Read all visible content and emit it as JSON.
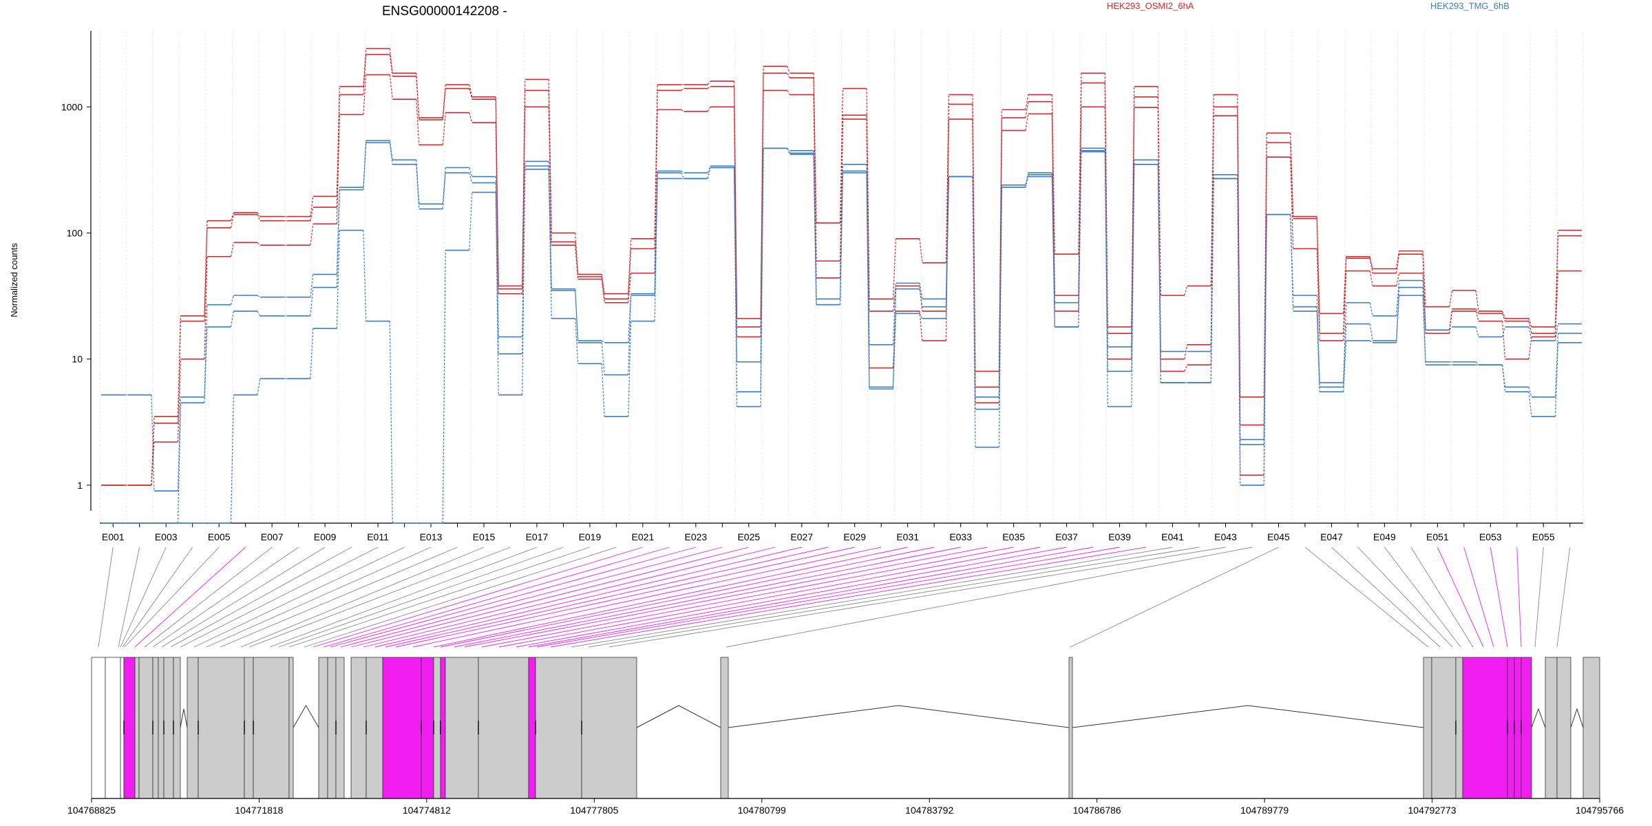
{
  "title": "ENSG00000142208 -",
  "legend": [
    {
      "label": "HEK293_OSMI2_6hA",
      "color": "#d62728"
    },
    {
      "label": "HEK293_TMG_6hB",
      "color": "#3a7fc1"
    }
  ],
  "ylabel": "Normalized counts",
  "colors": {
    "condition_a": "#d62728",
    "condition_b": "#3a7fc1",
    "differential_exon": "#f01ef0",
    "exon": "#cccccc",
    "connector": "#888888"
  },
  "chart_data": {
    "type": "line",
    "y_scale": "log",
    "ylim": [
      0.5,
      4000
    ],
    "yticks": [
      1,
      10,
      100,
      1000
    ],
    "ytick_labels": [
      "1",
      "10",
      "100",
      "1000"
    ],
    "exon_labels": [
      "E001",
      "E003",
      "E005",
      "E007",
      "E009",
      "E011",
      "E013",
      "E015",
      "E017",
      "E019",
      "E021",
      "E023",
      "E025",
      "E027",
      "E029",
      "E031",
      "E033",
      "E035",
      "E037",
      "E039",
      "E041",
      "E043",
      "E045",
      "E047",
      "E049",
      "E051",
      "E053",
      "E055"
    ],
    "exons": [
      "E001",
      "E002",
      "E003",
      "E004",
      "E005",
      "E006",
      "E007",
      "E008",
      "E009",
      "E010",
      "E011",
      "E012",
      "E013",
      "E014",
      "E015",
      "E016",
      "E017",
      "E018",
      "E019",
      "E020",
      "E021",
      "E022",
      "E023",
      "E024",
      "E025",
      "E026",
      "E027",
      "E028",
      "E029",
      "E030",
      "E031",
      "E032",
      "E033",
      "E034",
      "E035",
      "E036",
      "E037",
      "E038",
      "E039",
      "E040",
      "E041",
      "E042",
      "E043",
      "E044",
      "E045",
      "E046",
      "E047",
      "E048",
      "E049",
      "E050",
      "E051",
      "E052",
      "E053",
      "E054",
      "E055",
      "E056"
    ],
    "series": [
      {
        "condition": "HEK293_OSMI2_6hA",
        "values": [
          1,
          1,
          3.5,
          22,
          125,
          145,
          135,
          135,
          195,
          1450,
          2900,
          1850,
          820,
          1500,
          1200,
          38,
          1650,
          100,
          47,
          33,
          90,
          1500,
          1500,
          1600,
          21,
          2100,
          1850,
          120,
          1400,
          30,
          90,
          58,
          1250,
          8,
          950,
          1250,
          68,
          1850,
          18,
          1450,
          32,
          38,
          1250,
          5,
          620,
          135,
          23,
          65,
          52,
          72,
          26,
          35,
          24,
          21,
          18,
          105
        ]
      },
      {
        "condition": "HEK293_OSMI2_6hA",
        "values": [
          1,
          1,
          3.1,
          20,
          110,
          140,
          125,
          125,
          160,
          1250,
          2600,
          1750,
          790,
          1400,
          1150,
          36,
          1350,
          85,
          45,
          30,
          75,
          1350,
          1400,
          1450,
          18,
          1850,
          1700,
          60,
          860,
          24,
          38,
          24,
          1050,
          6,
          820,
          1100,
          32,
          1550,
          16,
          1200,
          10,
          13,
          1000,
          3,
          520,
          130,
          16,
          63,
          48,
          68,
          17,
          25,
          23,
          20,
          16,
          95
        ]
      },
      {
        "condition": "HEK293_OSMI2_6hA",
        "values": [
          1,
          1,
          2.2,
          10,
          65,
          84,
          80,
          80,
          118,
          870,
          1800,
          1150,
          500,
          900,
          750,
          33,
          1000,
          80,
          43,
          28,
          48,
          950,
          920,
          1000,
          15,
          1350,
          1250,
          44,
          800,
          8.5,
          24,
          14,
          800,
          4.5,
          650,
          880,
          24,
          1000,
          10,
          990,
          8,
          9,
          850,
          1.2,
          400,
          75,
          14,
          50,
          38,
          48,
          16,
          24,
          20,
          10,
          15,
          50
        ]
      },
      {
        "condition": "HEK293_TMG_6hB",
        "values": [
          5.2,
          5.2,
          0.9,
          5,
          27,
          32,
          31,
          31,
          47,
          230,
          540,
          380,
          170,
          330,
          280,
          15,
          370,
          36,
          14,
          13.5,
          33,
          310,
          300,
          340,
          9.5,
          470,
          450,
          30,
          350,
          13,
          40,
          30,
          280,
          5,
          240,
          300,
          28,
          470,
          12.5,
          380,
          11.5,
          11.5,
          290,
          2.3,
          140,
          32,
          6.5,
          28,
          22,
          42,
          17,
          18,
          15,
          18,
          14,
          19
        ]
      },
      {
        "condition": "HEK293_TMG_6hB",
        "values": [
          0.5,
          0.5,
          0.5,
          4.5,
          18,
          24,
          22,
          22,
          37,
          220,
          520,
          350,
          155,
          300,
          250,
          11,
          340,
          35,
          13.5,
          7.5,
          32,
          300,
          270,
          330,
          5.5,
          470,
          430,
          27,
          310,
          6,
          36,
          26,
          280,
          4,
          230,
          290,
          18,
          440,
          8,
          350,
          6.5,
          6.5,
          270,
          2.1,
          140,
          26,
          6,
          19,
          14,
          37,
          9.5,
          9.5,
          9,
          6,
          5,
          16
        ]
      },
      {
        "condition": "HEK293_TMG_6hB",
        "values": [
          0.5,
          0.5,
          0.5,
          0.5,
          0.5,
          5.2,
          7,
          7,
          17.5,
          105,
          20,
          0.5,
          0.5,
          73,
          210,
          5.2,
          320,
          21,
          9.2,
          3.5,
          20,
          270,
          270,
          330,
          4.2,
          470,
          420,
          27,
          300,
          5.8,
          23,
          21,
          280,
          2,
          230,
          280,
          18,
          450,
          4.2,
          350,
          6.5,
          6.5,
          270,
          1,
          140,
          24,
          5.5,
          14,
          13.5,
          32,
          9,
          9,
          9,
          5.5,
          3.5,
          13.5
        ]
      }
    ],
    "genome_ticks": [
      "104768825",
      "104771818",
      "104774812",
      "104777805",
      "104780799",
      "104783792",
      "104786786",
      "104789779",
      "104792773",
      "104795766"
    ]
  }
}
